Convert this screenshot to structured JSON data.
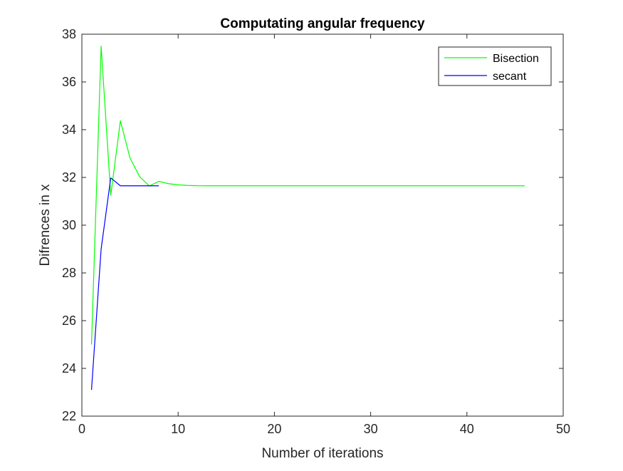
{
  "chart_data": {
    "type": "line",
    "title": "Computating angular frequency",
    "xlabel": "Number of iterations",
    "ylabel": "Difrences in x",
    "xlim": [
      0,
      50
    ],
    "ylim": [
      22,
      38
    ],
    "xticks": [
      0,
      10,
      20,
      30,
      40,
      50
    ],
    "yticks": [
      22,
      24,
      26,
      28,
      30,
      32,
      34,
      36,
      38
    ],
    "grid": false,
    "legend_position": "top-right",
    "series": [
      {
        "name": "Bisection",
        "color": "#00ff00",
        "x": [
          1,
          2,
          3,
          4,
          5,
          6,
          7,
          8,
          9,
          10,
          11,
          12,
          13,
          14,
          15,
          16,
          17,
          18,
          19,
          20,
          21,
          22,
          23,
          24,
          25,
          26,
          27,
          28,
          29,
          30,
          31,
          32,
          33,
          34,
          35,
          36,
          37,
          38,
          39,
          40,
          41,
          42,
          43,
          44,
          45,
          46
        ],
        "y": [
          25.0,
          37.5,
          31.25,
          34.375,
          32.8125,
          32.03125,
          31.640625,
          31.8359375,
          31.73828125,
          31.689453,
          31.665039,
          31.652832,
          31.65,
          31.65,
          31.65,
          31.65,
          31.65,
          31.65,
          31.65,
          31.65,
          31.65,
          31.65,
          31.65,
          31.65,
          31.65,
          31.65,
          31.65,
          31.65,
          31.65,
          31.65,
          31.65,
          31.65,
          31.65,
          31.65,
          31.65,
          31.65,
          31.65,
          31.65,
          31.65,
          31.65,
          31.65,
          31.65,
          31.65,
          31.65,
          31.65,
          31.65
        ]
      },
      {
        "name": "secant",
        "color": "#0000ff",
        "x": [
          1,
          2,
          3,
          4,
          5,
          6,
          7,
          8
        ],
        "y": [
          23.1,
          29.0,
          31.98,
          31.65,
          31.65,
          31.65,
          31.65,
          31.65
        ]
      }
    ]
  }
}
